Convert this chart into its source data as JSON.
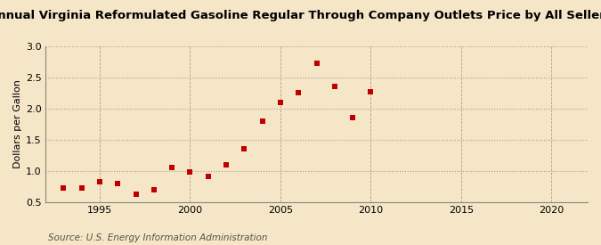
{
  "title": "Annual Virginia Reformulated Gasoline Regular Through Company Outlets Price by All Sellers",
  "ylabel": "Dollars per Gallon",
  "source": "Source: U.S. Energy Information Administration",
  "background_color": "#f5e6c8",
  "plot_bg_color": "#f5e6c8",
  "years": [
    1993,
    1994,
    1995,
    1996,
    1997,
    1998,
    1999,
    2000,
    2001,
    2002,
    2003,
    2004,
    2005,
    2006,
    2007,
    2008,
    2009,
    2010
  ],
  "values": [
    0.73,
    0.72,
    0.82,
    0.8,
    0.63,
    0.7,
    1.05,
    0.98,
    0.91,
    1.09,
    1.35,
    1.8,
    2.1,
    2.26,
    2.73,
    2.35,
    1.85,
    2.27
  ],
  "xlim": [
    1992,
    2022
  ],
  "ylim": [
    0.5,
    3.0
  ],
  "yticks": [
    0.5,
    1.0,
    1.5,
    2.0,
    2.5,
    3.0
  ],
  "xticks": [
    1995,
    2000,
    2005,
    2010,
    2015,
    2020
  ],
  "marker_color": "#c00000",
  "marker_size": 4,
  "grid_color": "#b0a090",
  "title_fontsize": 9.5,
  "label_fontsize": 8,
  "tick_fontsize": 8,
  "source_fontsize": 7.5
}
